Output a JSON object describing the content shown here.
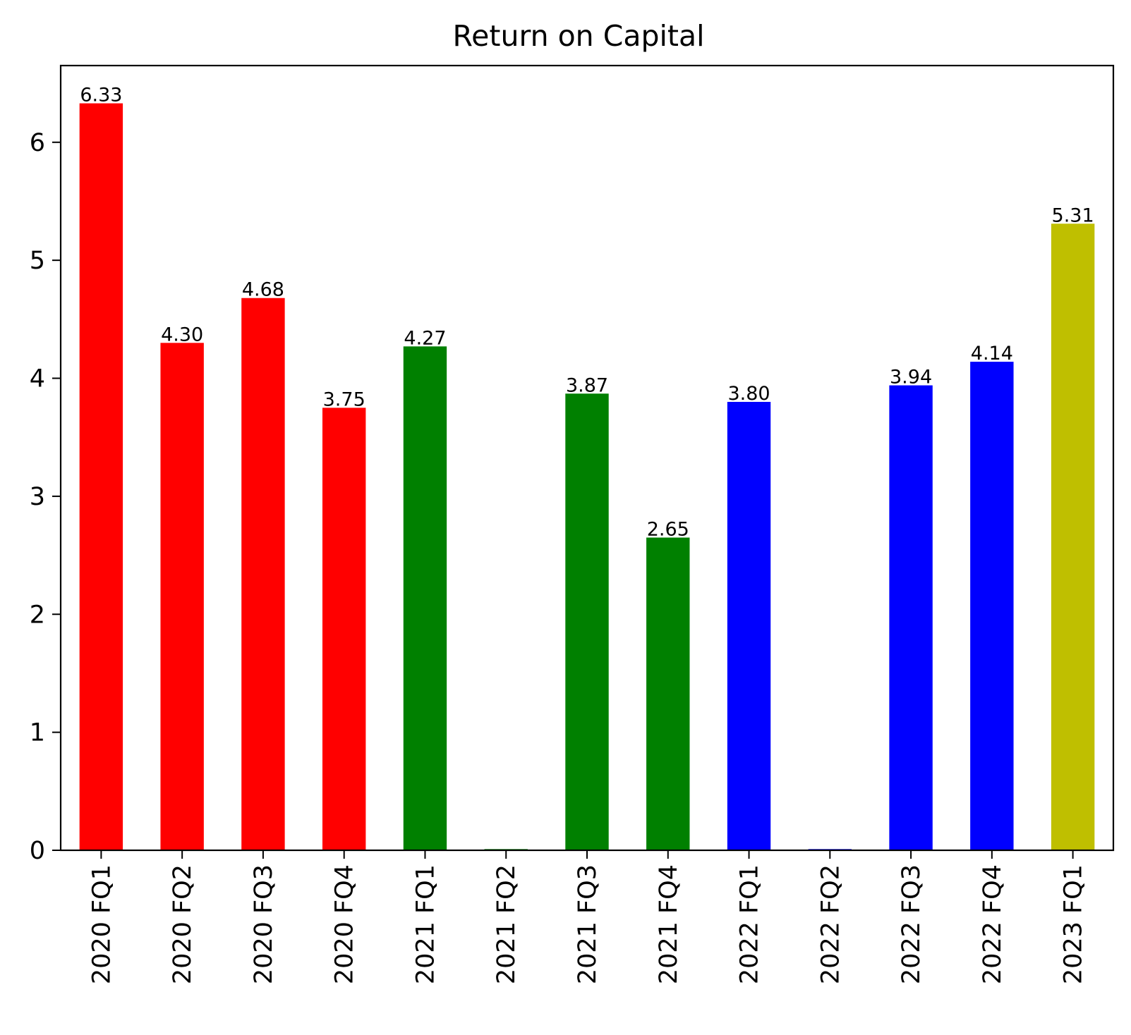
{
  "chart_data": {
    "type": "bar",
    "title": "Return on Capital",
    "xlabel": "",
    "ylabel": "",
    "categories": [
      "2020 FQ1",
      "2020 FQ2",
      "2020 FQ3",
      "2020 FQ4",
      "2021 FQ1",
      "2021 FQ2",
      "2021 FQ3",
      "2021 FQ4",
      "2022 FQ1",
      "2022 FQ2",
      "2022 FQ3",
      "2022 FQ4",
      "2023 FQ1"
    ],
    "values": [
      6.33,
      4.3,
      4.68,
      3.75,
      4.27,
      0.01,
      3.87,
      2.65,
      3.8,
      0.01,
      3.94,
      4.14,
      5.31
    ],
    "data_labels": [
      "6.33",
      "4.30",
      "4.68",
      "3.75",
      "4.27",
      "",
      "3.87",
      "2.65",
      "3.80",
      "",
      "3.94",
      "4.14",
      "5.31"
    ],
    "bar_colors": [
      "#ff0000",
      "#ff0000",
      "#ff0000",
      "#ff0000",
      "#008000",
      "#008000",
      "#008000",
      "#008000",
      "#0000ff",
      "#0000ff",
      "#0000ff",
      "#0000ff",
      "#bfbf00"
    ],
    "ylim": [
      0,
      6.65
    ],
    "yticks": [
      0,
      1,
      2,
      3,
      4,
      5,
      6
    ],
    "ytick_labels": [
      "0",
      "1",
      "2",
      "3",
      "4",
      "5",
      "6"
    ],
    "grid": false,
    "legend": "none"
  }
}
